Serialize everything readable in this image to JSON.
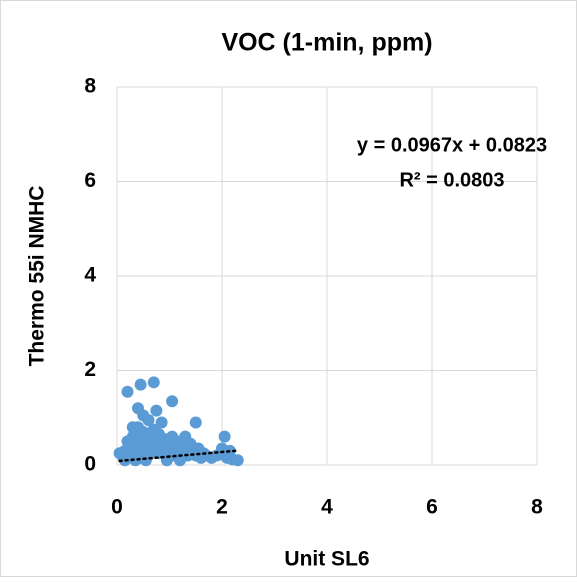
{
  "chart_data": {
    "type": "scatter",
    "title": "VOC (1-min, ppm)",
    "x_label": "Unit SL6",
    "y_label": "Thermo 55i NMHC",
    "annotations": [
      "y = 0.0967x + 0.0823",
      "R² = 0.0803"
    ],
    "trendline": {
      "slope": 0.0967,
      "intercept": 0.0823
    },
    "color": "#5b9bd5",
    "grid": true,
    "xlim": [
      0,
      8
    ],
    "xticks": [
      0,
      2,
      4,
      6,
      8
    ],
    "ylim": [
      0,
      8
    ],
    "yticks": [
      0,
      2,
      4,
      6,
      8
    ],
    "x": [
      0.05,
      0.1,
      0.15,
      0.2,
      0.2,
      0.25,
      0.3,
      0.3,
      0.35,
      0.4,
      0.4,
      0.45,
      0.45,
      0.5,
      0.5,
      0.55,
      0.6,
      0.6,
      0.65,
      0.7,
      0.7,
      0.75,
      0.8,
      0.8,
      0.85,
      0.9,
      0.95,
      1.0,
      1.05,
      1.05,
      1.1,
      1.15,
      1.2,
      1.25,
      1.3,
      1.35,
      1.4,
      1.45,
      1.5,
      1.55,
      1.6,
      1.65,
      1.7,
      1.8,
      1.9,
      2.0,
      2.05,
      2.05,
      2.1,
      2.15,
      2.2,
      2.3,
      0.2,
      0.45,
      0.7,
      0.75,
      1.05,
      0.4,
      0.5,
      0.85,
      0.3,
      1.3,
      0.6,
      1.5,
      0.15,
      0.35,
      0.55,
      0.95,
      1.2
    ],
    "values": [
      0.25,
      0.2,
      0.3,
      0.15,
      0.5,
      0.35,
      0.6,
      0.2,
      0.45,
      0.8,
      0.3,
      0.55,
      0.15,
      0.7,
      0.25,
      0.4,
      0.6,
      0.2,
      0.5,
      0.35,
      0.75,
      0.45,
      0.25,
      0.65,
      0.4,
      0.55,
      0.3,
      0.45,
      0.2,
      0.6,
      0.35,
      0.5,
      0.25,
      0.4,
      0.3,
      0.2,
      0.45,
      0.3,
      0.2,
      0.35,
      0.15,
      0.25,
      0.2,
      0.15,
      0.2,
      0.35,
      0.6,
      0.2,
      0.15,
      0.3,
      0.12,
      0.1,
      1.55,
      1.7,
      1.75,
      1.15,
      1.35,
      1.2,
      1.05,
      0.9,
      0.8,
      0.6,
      0.95,
      0.9,
      0.1,
      0.1,
      0.1,
      0.1,
      0.1
    ]
  }
}
